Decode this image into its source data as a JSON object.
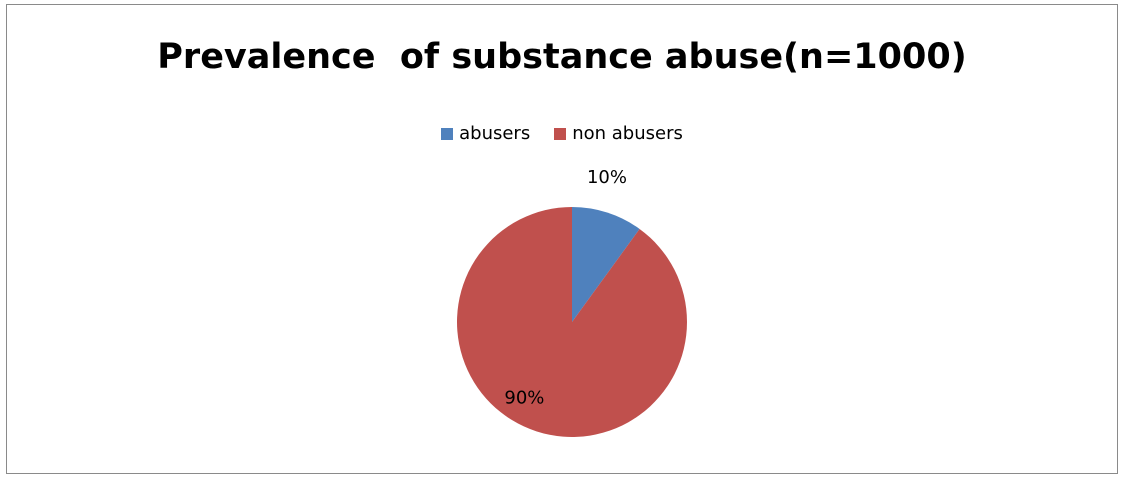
{
  "chart_data": {
    "type": "pie",
    "title": "Prevalence  of substance abuse(n=1000)",
    "slices": [
      {
        "label": "abusers",
        "value": 10,
        "data_label": "10%",
        "color": "#4F81BD"
      },
      {
        "label": "non abusers",
        "value": 90,
        "data_label": "90%",
        "color": "#C0504D"
      }
    ],
    "legend_position": "top"
  }
}
